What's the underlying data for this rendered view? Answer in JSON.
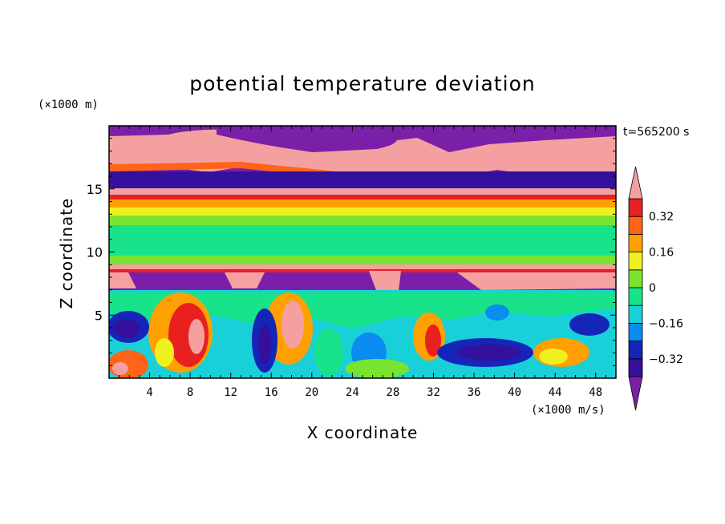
{
  "chart_data": {
    "type": "heatmap",
    "title": "potential temperature deviation",
    "ylabel": "Z coordinate",
    "xlabel": "X coordinate",
    "y_unit": "(×1000 m)",
    "x_unit": "(×1000 m/s)",
    "time_label": "t=565200 s",
    "xlim": [
      0,
      50
    ],
    "ylim": [
      0,
      20
    ],
    "x_ticks": [
      4,
      8,
      12,
      16,
      20,
      24,
      28,
      32,
      36,
      40,
      44,
      48
    ],
    "y_ticks": [
      5,
      10,
      15
    ],
    "colorbar": {
      "levels": [
        -0.4,
        -0.32,
        -0.24,
        -0.16,
        -0.08,
        0,
        0.08,
        0.16,
        0.24,
        0.32,
        0.4
      ],
      "tick_labels": [
        "0.32",
        "0.16",
        "0",
        "−0.16",
        "−0.32"
      ],
      "tick_values": [
        0.32,
        0.16,
        0,
        -0.16,
        -0.32
      ],
      "colors": [
        "#7a20a8",
        "#34109c",
        "#1525b8",
        "#0a8cf0",
        "#1ad0d8",
        "#18e28a",
        "#78e430",
        "#f0f020",
        "#ffa000",
        "#ff6418",
        "#e82020",
        "#f5a0a0"
      ],
      "extend": "both"
    },
    "field_description_bands": [
      {
        "z_range": [
          17,
          20
        ],
        "value": "mix of high positive and negative anomalies"
      },
      {
        "z_range": [
          14.5,
          17
        ],
        "value": "negative (~-0.4)"
      },
      {
        "z_range": [
          12.5,
          14.5
        ],
        "value": "positive (~0.16 to 0.32)"
      },
      {
        "z_range": [
          9,
          12.5
        ],
        "value": "near zero (~0 to 0.08)"
      },
      {
        "z_range": [
          8,
          9
        ],
        "value": "strong positive (>0.4)"
      },
      {
        "z_range": [
          7,
          8
        ],
        "value": "negative (~-0.4)"
      },
      {
        "z_range": [
          0,
          7
        ],
        "value": "turbulent eddies, mixed sign"
      }
    ]
  }
}
